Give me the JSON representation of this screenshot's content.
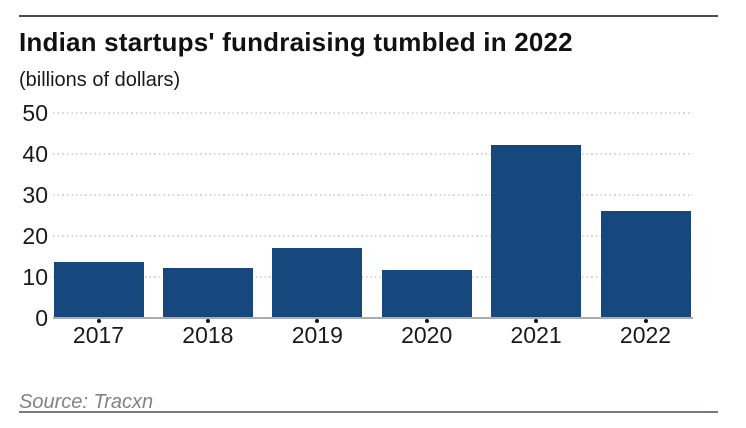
{
  "header": {
    "title": "Indian startups' fundraising tumbled in 2022",
    "subtitle": "(billions of dollars)"
  },
  "source": {
    "label": "Source: Tracxn"
  },
  "colors": {
    "bar": "#17487d",
    "grid_dots": "#dcd5d5",
    "axis_line": "#aeaaae",
    "tick_dot": "#111111",
    "text": "#1a1a1a",
    "title_text": "#111111",
    "source_text": "#868086",
    "top_rule": "#4b4b4b",
    "bottom_rule": "#7e767e",
    "background": "#ffffff"
  },
  "chart_data": {
    "type": "bar",
    "title": "Indian startups' fundraising tumbled in 2022",
    "subtitle": "(billions of dollars)",
    "categories": [
      "2017",
      "2018",
      "2019",
      "2020",
      "2021",
      "2022"
    ],
    "values": [
      13.5,
      12,
      17,
      11.5,
      42,
      26
    ],
    "xlabel": "",
    "ylabel": "(billions of dollars)",
    "ylim": [
      0,
      50
    ],
    "yticks": [
      0,
      10,
      20,
      30,
      40,
      50
    ],
    "grid": "horizontal-dotted",
    "legend": "none",
    "source": "Source: Tracxn"
  }
}
